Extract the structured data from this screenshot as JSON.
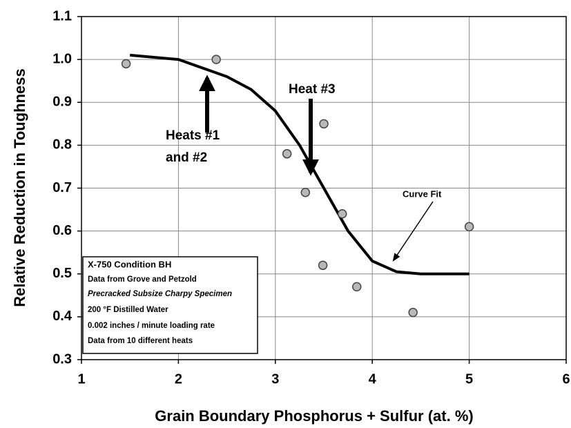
{
  "chart_data": {
    "type": "scatter",
    "xlabel": "Grain Boundary Phosphorus + Sulfur (at. %)",
    "ylabel": "Relative Reduction in Toughness",
    "x": [
      1.46,
      2.39,
      3.12,
      3.5,
      3.31,
      3.69,
      3.49,
      3.84,
      4.42,
      5.0
    ],
    "values": [
      0.99,
      1.0,
      0.78,
      0.85,
      0.69,
      0.64,
      0.52,
      0.47,
      0.41,
      0.61
    ],
    "color": "#b8b8b8",
    "curve_fit": {
      "x": [
        1.5,
        2,
        2.5,
        2.75,
        3,
        3.25,
        3.4,
        3.5,
        3.75,
        4,
        4.25,
        4.5,
        5
      ],
      "values": [
        1.01,
        1.0,
        0.96,
        0.93,
        0.88,
        0.8,
        0.74,
        0.7,
        0.6,
        0.53,
        0.505,
        0.5,
        0.5
      ],
      "color": "#000000"
    },
    "xlim": [
      1,
      6
    ],
    "ylim": [
      0.3,
      1.1
    ],
    "xticks": [
      1,
      2,
      3,
      4,
      5,
      6
    ],
    "yticks": [
      0.3,
      0.4,
      0.5,
      0.6,
      0.7,
      0.8,
      0.9,
      {
        "value": 1,
        "label": "1.0"
      },
      1.1
    ],
    "grid": true,
    "annotations": {
      "heats_1_2": [
        "Heats #1",
        "and #2"
      ],
      "heat_3": "Heat #3",
      "curve_fit": "Curve Fit"
    },
    "info_box": [
      "X-750 Condition BH",
      "Data from Grove and Petzold",
      "Precracked Subsize Charpy Specimen",
      "200 °F Distilled Water",
      "0.002 inches / minute loading rate",
      "Data from 10 different heats"
    ]
  }
}
